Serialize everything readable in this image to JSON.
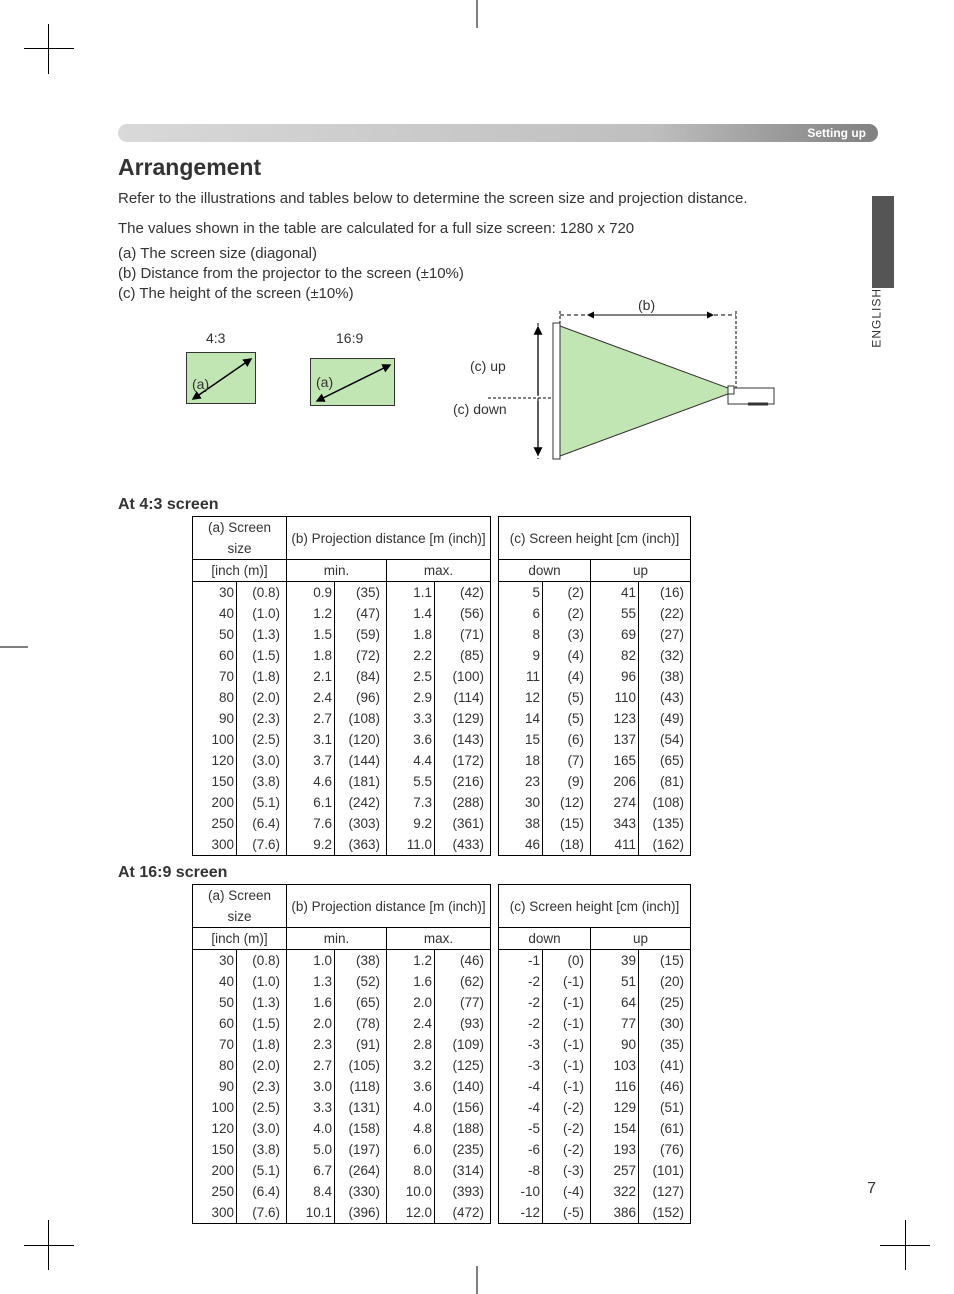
{
  "header": {
    "section": "Setting up"
  },
  "language": "ENGLISH",
  "page_number": "7",
  "title": "Arrangement",
  "intro": "Refer to the illustrations and tables below to determine the screen size and projection distance.",
  "values_note": "The values shown in the table are calculated for a full size screen: 1280 x 720",
  "legend": {
    "a": "(a) The screen size (diagonal)",
    "b": "(b) Distance from the projector to the screen (±10%)",
    "c": "(c) The height of the screen (±10%)"
  },
  "diagram": {
    "ratio_43": "4:3",
    "ratio_169": "16:9",
    "label_a": "(a)",
    "label_b": "(b)",
    "label_c_up": "(c) up",
    "label_c_down": "(c) down"
  },
  "colors": {
    "screen_fill": "#c2e6b3",
    "beam_fill": "#c2e6b3",
    "border": "#333333"
  },
  "table_headers": {
    "a": "(a) Screen size",
    "a_sub": "[inch (m)]",
    "b": "(b) Projection distance [m (inch)]",
    "b_min": "min.",
    "b_max": "max.",
    "c": "(c) Screen height [cm (inch)]",
    "c_down": "down",
    "c_up": "up"
  },
  "section_43": {
    "title": "At 4:3 screen",
    "rows": [
      [
        "30",
        "(0.8)",
        "0.9",
        "(35)",
        "1.1",
        "(42)",
        "5",
        "(2)",
        "41",
        "(16)"
      ],
      [
        "40",
        "(1.0)",
        "1.2",
        "(47)",
        "1.4",
        "(56)",
        "6",
        "(2)",
        "55",
        "(22)"
      ],
      [
        "50",
        "(1.3)",
        "1.5",
        "(59)",
        "1.8",
        "(71)",
        "8",
        "(3)",
        "69",
        "(27)"
      ],
      [
        "60",
        "(1.5)",
        "1.8",
        "(72)",
        "2.2",
        "(85)",
        "9",
        "(4)",
        "82",
        "(32)"
      ],
      [
        "70",
        "(1.8)",
        "2.1",
        "(84)",
        "2.5",
        "(100)",
        "11",
        "(4)",
        "96",
        "(38)"
      ],
      [
        "80",
        "(2.0)",
        "2.4",
        "(96)",
        "2.9",
        "(114)",
        "12",
        "(5)",
        "110",
        "(43)"
      ],
      [
        "90",
        "(2.3)",
        "2.7",
        "(108)",
        "3.3",
        "(129)",
        "14",
        "(5)",
        "123",
        "(49)"
      ],
      [
        "100",
        "(2.5)",
        "3.1",
        "(120)",
        "3.6",
        "(143)",
        "15",
        "(6)",
        "137",
        "(54)"
      ],
      [
        "120",
        "(3.0)",
        "3.7",
        "(144)",
        "4.4",
        "(172)",
        "18",
        "(7)",
        "165",
        "(65)"
      ],
      [
        "150",
        "(3.8)",
        "4.6",
        "(181)",
        "5.5",
        "(216)",
        "23",
        "(9)",
        "206",
        "(81)"
      ],
      [
        "200",
        "(5.1)",
        "6.1",
        "(242)",
        "7.3",
        "(288)",
        "30",
        "(12)",
        "274",
        "(108)"
      ],
      [
        "250",
        "(6.4)",
        "7.6",
        "(303)",
        "9.2",
        "(361)",
        "38",
        "(15)",
        "343",
        "(135)"
      ],
      [
        "300",
        "(7.6)",
        "9.2",
        "(363)",
        "11.0",
        "(433)",
        "46",
        "(18)",
        "411",
        "(162)"
      ]
    ]
  },
  "section_169": {
    "title": "At 16:9 screen",
    "rows": [
      [
        "30",
        "(0.8)",
        "1.0",
        "(38)",
        "1.2",
        "(46)",
        "-1",
        "(0)",
        "39",
        "(15)"
      ],
      [
        "40",
        "(1.0)",
        "1.3",
        "(52)",
        "1.6",
        "(62)",
        "-2",
        "(-1)",
        "51",
        "(20)"
      ],
      [
        "50",
        "(1.3)",
        "1.6",
        "(65)",
        "2.0",
        "(77)",
        "-2",
        "(-1)",
        "64",
        "(25)"
      ],
      [
        "60",
        "(1.5)",
        "2.0",
        "(78)",
        "2.4",
        "(93)",
        "-2",
        "(-1)",
        "77",
        "(30)"
      ],
      [
        "70",
        "(1.8)",
        "2.3",
        "(91)",
        "2.8",
        "(109)",
        "-3",
        "(-1)",
        "90",
        "(35)"
      ],
      [
        "80",
        "(2.0)",
        "2.7",
        "(105)",
        "3.2",
        "(125)",
        "-3",
        "(-1)",
        "103",
        "(41)"
      ],
      [
        "90",
        "(2.3)",
        "3.0",
        "(118)",
        "3.6",
        "(140)",
        "-4",
        "(-1)",
        "116",
        "(46)"
      ],
      [
        "100",
        "(2.5)",
        "3.3",
        "(131)",
        "4.0",
        "(156)",
        "-4",
        "(-2)",
        "129",
        "(51)"
      ],
      [
        "120",
        "(3.0)",
        "4.0",
        "(158)",
        "4.8",
        "(188)",
        "-5",
        "(-2)",
        "154",
        "(61)"
      ],
      [
        "150",
        "(3.8)",
        "5.0",
        "(197)",
        "6.0",
        "(235)",
        "-6",
        "(-2)",
        "193",
        "(76)"
      ],
      [
        "200",
        "(5.1)",
        "6.7",
        "(264)",
        "8.0",
        "(314)",
        "-8",
        "(-3)",
        "257",
        "(101)"
      ],
      [
        "250",
        "(6.4)",
        "8.4",
        "(330)",
        "10.0",
        "(393)",
        "-10",
        "(-4)",
        "322",
        "(127)"
      ],
      [
        "300",
        "(7.6)",
        "10.1",
        "(396)",
        "12.0",
        "(472)",
        "-12",
        "(-5)",
        "386",
        "(152)"
      ]
    ]
  }
}
